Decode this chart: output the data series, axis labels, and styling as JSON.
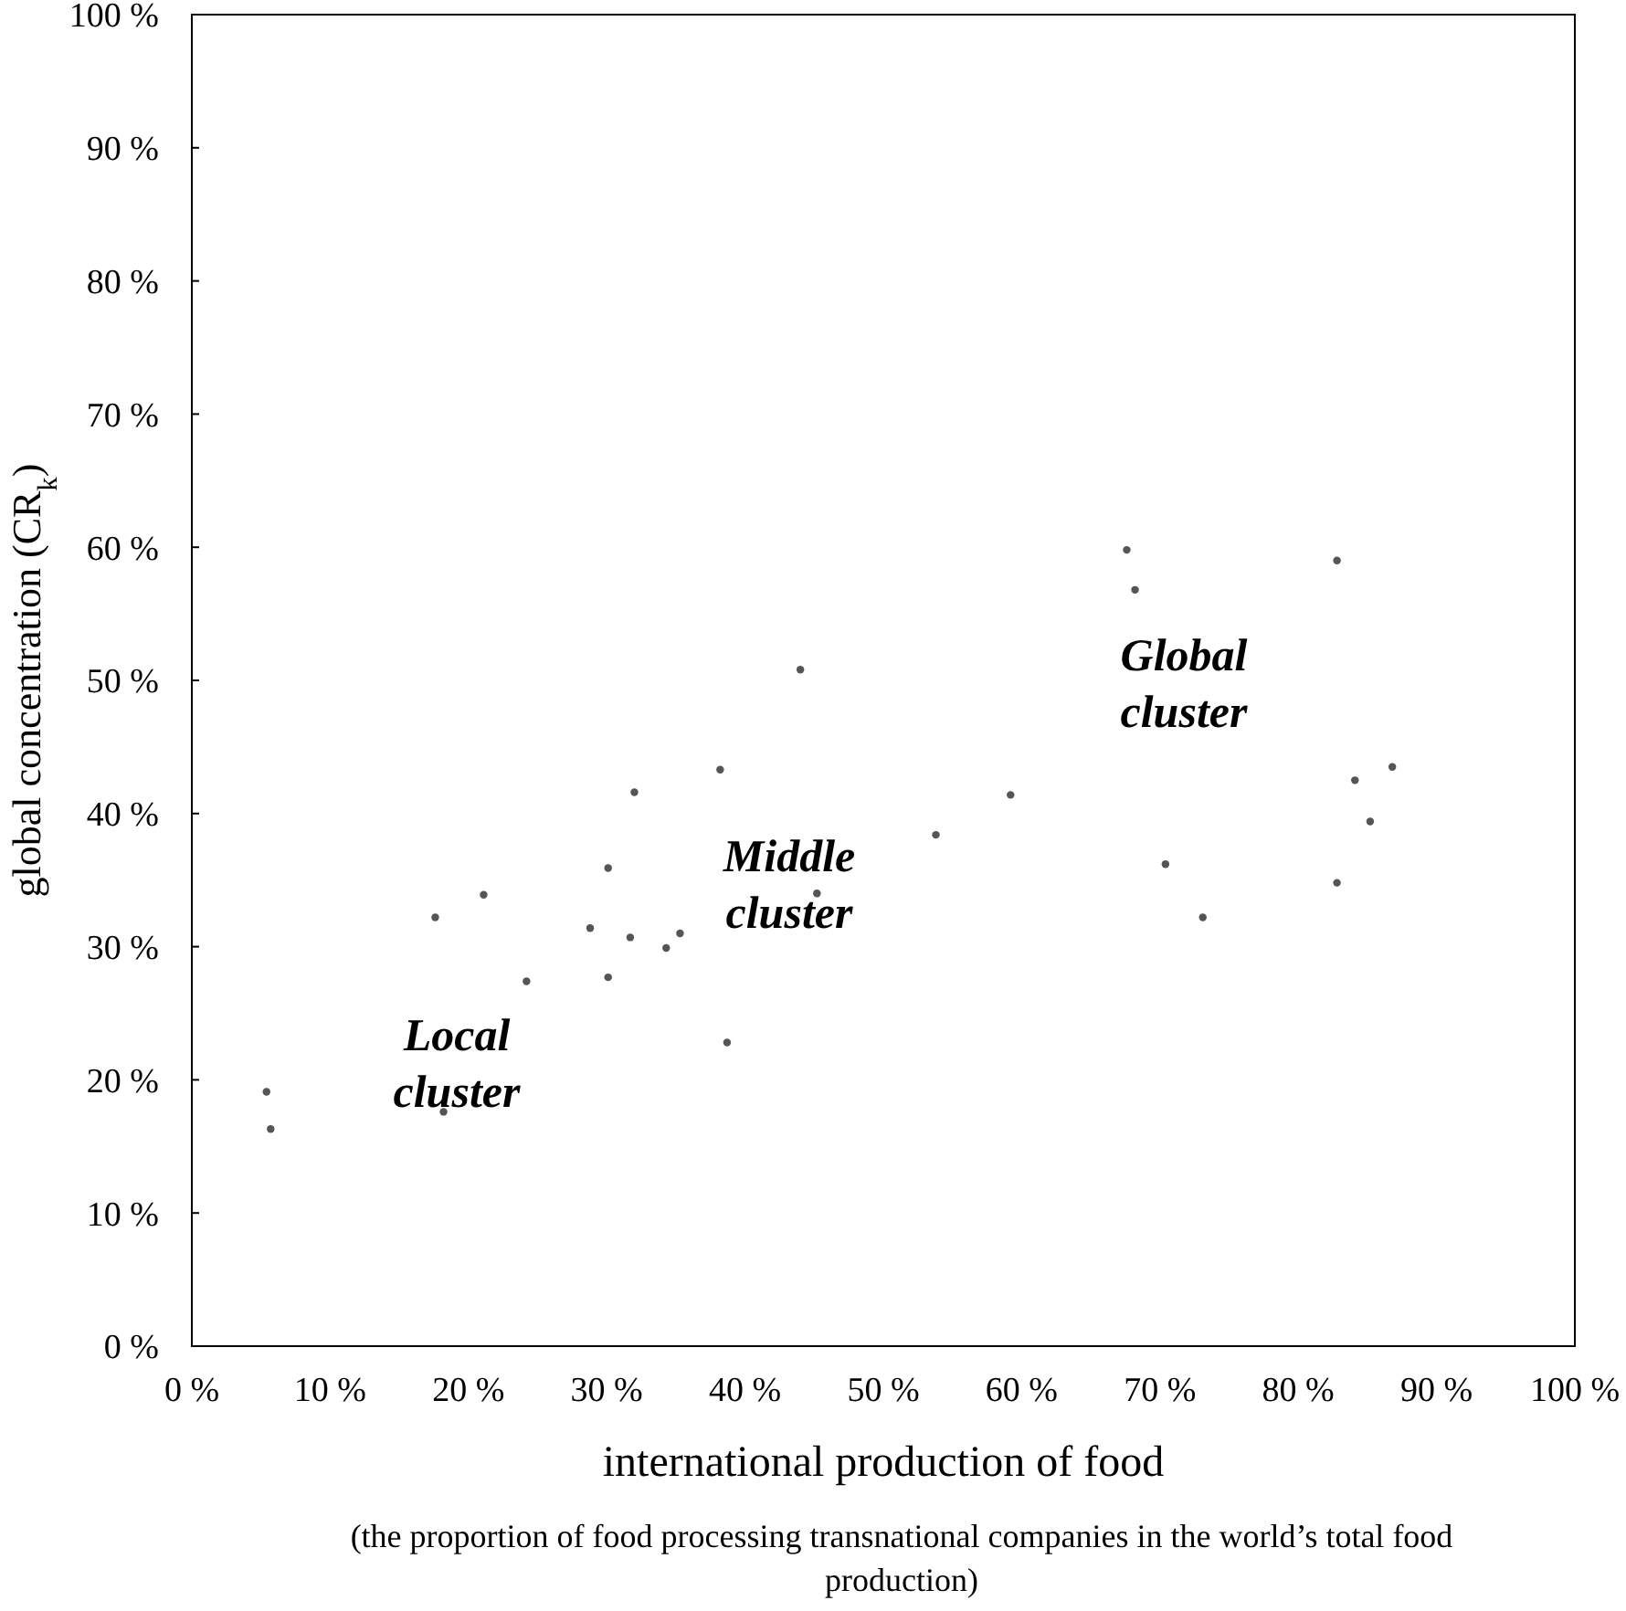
{
  "chart_data": {
    "type": "scatter",
    "xlabel": "international production of food",
    "ylabel": "global concentration (CR$_{k}$)",
    "annotations": [
      "Local cluster",
      "Middle cluster",
      "Global cluster",
      "(the proportion of food processing transnational companies in the world’s total food production)"
    ],
    "series": [
      {
        "color": "#555555",
        "x": [
          5.7,
          5.4,
          17.6,
          21.1,
          30.1,
          28.8,
          31.7,
          30.1,
          24.2,
          18.2,
          44.0,
          38.2,
          32.0,
          53.8,
          35.3,
          34.3,
          38.7,
          45.2,
          67.6,
          68.2,
          82.8,
          86.8,
          84.1,
          85.2,
          59.2,
          70.4,
          82.8,
          73.1
        ],
        "values": [
          16.3,
          19.1,
          32.2,
          33.9,
          35.9,
          31.4,
          30.7,
          27.7,
          27.4,
          17.6,
          50.8,
          43.3,
          41.6,
          38.4,
          31.0,
          29.9,
          22.8,
          34.0,
          59.8,
          56.8,
          59.0,
          43.5,
          42.5,
          39.4,
          41.4,
          36.2,
          34.8,
          32.2
        ]
      }
    ],
    "xlim": [
      0,
      100
    ],
    "ylim": [
      0,
      100
    ],
    "xticks": [
      {
        "value": 0,
        "label": "0 %"
      },
      {
        "value": 10,
        "label": "10 %"
      },
      {
        "value": 20,
        "label": "20 %"
      },
      {
        "value": 30,
        "label": "30 %"
      },
      {
        "value": 40,
        "label": "40 %"
      },
      {
        "value": 50,
        "label": "50 %"
      },
      {
        "value": 60,
        "label": "60 %"
      },
      {
        "value": 70,
        "label": "70 %"
      },
      {
        "value": 80,
        "label": "80 %"
      },
      {
        "value": 90,
        "label": "90 %"
      },
      {
        "value": 100,
        "label": "100 %"
      }
    ],
    "yticks": [
      {
        "value": 0,
        "label": "0 %"
      },
      {
        "value": 10,
        "label": "10 %"
      },
      {
        "value": 20,
        "label": "20 %"
      },
      {
        "value": 30,
        "label": "30 %"
      },
      {
        "value": 40,
        "label": "40 %"
      },
      {
        "value": 50,
        "label": "50 %"
      },
      {
        "value": 60,
        "label": "60 %"
      },
      {
        "value": 70,
        "label": "70 %"
      },
      {
        "value": 80,
        "label": "80 %"
      },
      {
        "value": 90,
        "label": "90 %"
      },
      {
        "value": 100,
        "label": "100 %"
      }
    ],
    "grid": false,
    "marker": "circle"
  }
}
